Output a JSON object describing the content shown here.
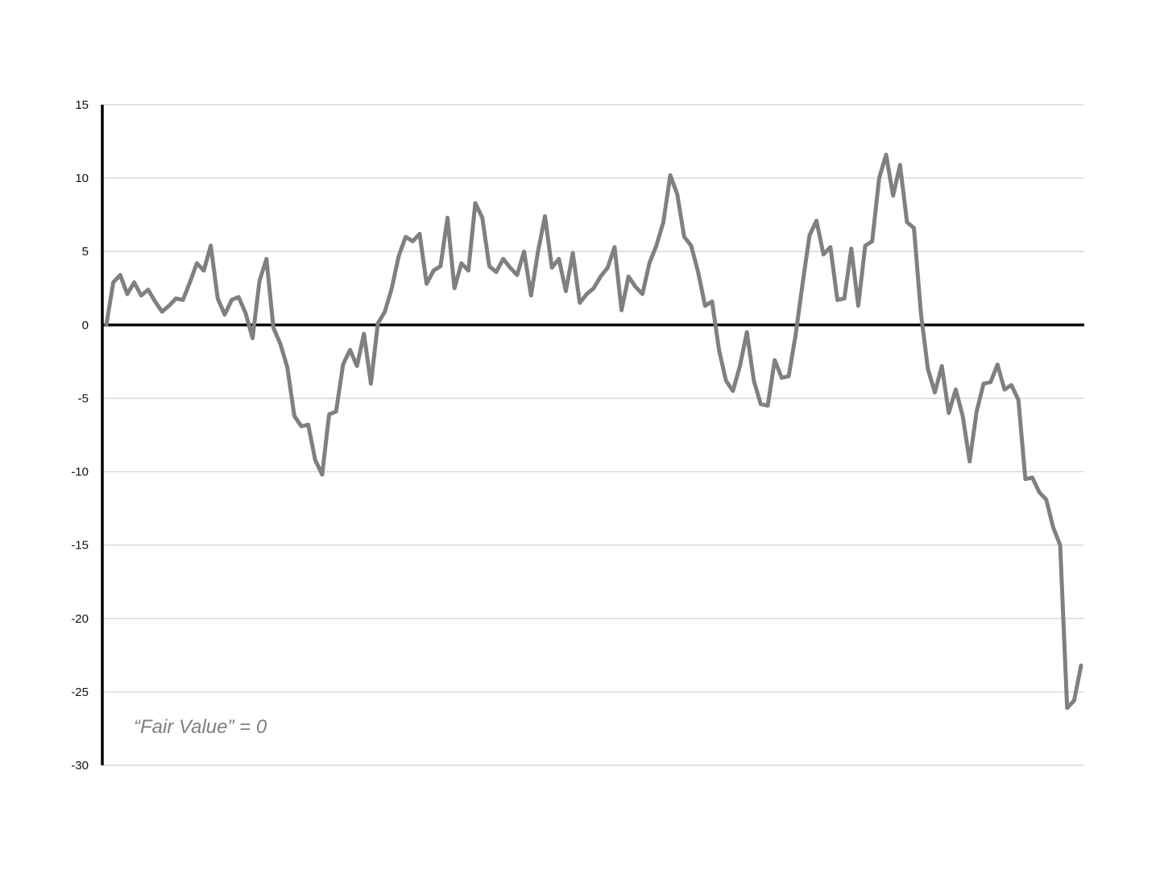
{
  "chart_data": {
    "type": "line",
    "title": "",
    "xlabel": "",
    "ylabel": "",
    "ylim": [
      -30,
      15
    ],
    "yticks": [
      15,
      10,
      5,
      0,
      -5,
      -10,
      -15,
      -20,
      -25,
      -30
    ],
    "grid": true,
    "legend": "none",
    "annotation": "“Fair Value” = 0",
    "colors": {
      "line": "#808080",
      "grid": "#d9d9d9",
      "axis": "#000000",
      "annotation": "#7f7f7f"
    },
    "series": [
      {
        "values": [
          0,
          2.9,
          3.4,
          2.1,
          2.9,
          2.0,
          2.4,
          1.6,
          0.9,
          1.3,
          1.8,
          1.7,
          2.9,
          4.2,
          3.7,
          5.4,
          1.8,
          0.7,
          1.7,
          1.9,
          0.8,
          -0.9,
          3.0,
          4.5,
          -0.2,
          -1.3,
          -2.9,
          -6.2,
          -6.9,
          -6.8,
          -9.2,
          -10.2,
          -6.1,
          -5.9,
          -2.7,
          -1.7,
          -2.8,
          -0.6,
          -4.0,
          0.1,
          0.9,
          2.5,
          4.7,
          6.0,
          5.7,
          6.2,
          2.8,
          3.7,
          4.0,
          7.3,
          2.5,
          4.2,
          3.7,
          8.3,
          7.3,
          4.0,
          3.6,
          4.5,
          3.9,
          3.4,
          5.0,
          2.0,
          5.0,
          7.4,
          3.9,
          4.5,
          2.3,
          4.9,
          1.5,
          2.1,
          2.5,
          3.3,
          3.9,
          5.3,
          1.0,
          3.3,
          2.6,
          2.1,
          4.2,
          5.4,
          7.0,
          10.2,
          8.9,
          6.0,
          5.4,
          3.6,
          1.3,
          1.6,
          -1.7,
          -3.8,
          -4.5,
          -2.8,
          -0.5,
          -3.8,
          -5.4,
          -5.5,
          -2.4,
          -3.6,
          -3.5,
          -0.7,
          2.8,
          6.1,
          7.1,
          4.8,
          5.3,
          1.7,
          1.8,
          5.2,
          1.3,
          5.4,
          5.7,
          10.0,
          11.6,
          8.8,
          10.9,
          7.0,
          6.6,
          0.8,
          -3.0,
          -4.6,
          -2.8,
          -6.0,
          -4.4,
          -6.2,
          -9.3,
          -5.9,
          -4.0,
          -3.9,
          -2.7,
          -4.4,
          -4.1,
          -5.1,
          -10.5,
          -10.4,
          -11.4,
          -11.9,
          -13.8,
          -15.0,
          -26.1,
          -25.6,
          -23.2
        ]
      }
    ]
  }
}
